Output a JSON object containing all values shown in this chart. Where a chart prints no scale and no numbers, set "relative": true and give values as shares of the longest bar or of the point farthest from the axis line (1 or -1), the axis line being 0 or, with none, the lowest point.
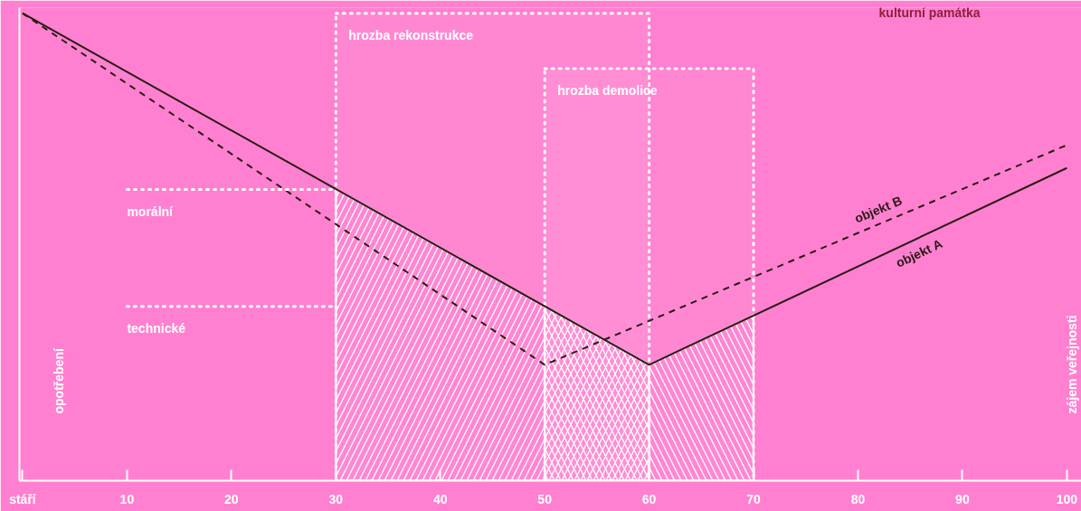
{
  "chart_data": {
    "type": "line",
    "relative": true,
    "ylabel": "opotřebení",
    "y2label": "zájem veřejnosti",
    "xlim": [
      -0.3,
      101.4
    ],
    "xticks": [
      {
        "value": 0,
        "label": "stáří"
      },
      10,
      20,
      30,
      40,
      50,
      60,
      70,
      80,
      90,
      100
    ],
    "series": [
      {
        "name": "objekt A",
        "color": "#2a1a14",
        "line_style": "solid",
        "x": [
          0,
          60,
          100
        ],
        "values": [
          1.0,
          0.248,
          0.669
        ]
      },
      {
        "name": "objekt B",
        "color": "#2a1a14",
        "line_style": "dashed",
        "x": [
          0,
          50,
          100
        ],
        "values": [
          1.0,
          0.248,
          0.718
        ]
      },
      {
        "type": "area",
        "color": "#ffffff",
        "x": [
          30,
          60
        ],
        "values": [
          0.624,
          0.248
        ]
      },
      {
        "type": "area",
        "color": "#ffffff",
        "x": [
          50,
          60,
          70
        ],
        "values": [
          0.373,
          0.248,
          0.353
        ]
      }
    ],
    "bands": [
      {
        "axis": "x",
        "from": 30,
        "to": 60,
        "label": "hrozba rekonstrukce",
        "color": "#ffffff"
      },
      {
        "axis": "x",
        "from": 50,
        "to": 70,
        "label": "hrozba demolice",
        "color": "#ffffff"
      }
    ],
    "ref_lines": [
      {
        "axis": "y",
        "value": 0.623,
        "label": "morální",
        "color": "#ffffff",
        "line_style": "dotted"
      },
      {
        "axis": "y",
        "value": 0.373,
        "label": "technické",
        "color": "#ffffff",
        "line_style": "dotted"
      }
    ],
    "annotations": [
      "kulturní památka"
    ],
    "legend": false,
    "grid": false,
    "marker": "none"
  }
}
